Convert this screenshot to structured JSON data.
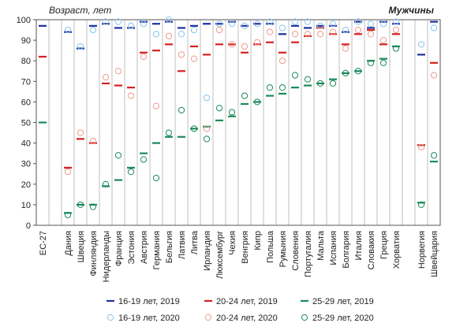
{
  "chart_data": {
    "type": "scatter",
    "title": "Мужчины",
    "ylabel": "Возраст, лет",
    "ylim": [
      0,
      100
    ],
    "yticks": [
      0,
      10,
      20,
      30,
      40,
      50,
      60,
      70,
      80,
      90,
      100
    ],
    "categories": [
      "ЕС-27",
      "Дания",
      "Швеция",
      "Финляндия",
      "Нидерланды",
      "Франция",
      "Эстония",
      "Австрия",
      "Германия",
      "Бельгия",
      "Латвия",
      "Литва",
      "Ирландия",
      "Люксембург",
      "Чехия",
      "Венгрия",
      "Кипр",
      "Польша",
      "Румыния",
      "Словения",
      "Португалия",
      "Мальта",
      "Испания",
      "Болгария",
      "Италия",
      "Словакия",
      "Греция",
      "Хорватия",
      "Норвегия",
      "Швейцария"
    ],
    "category_groups": [
      [
        0
      ],
      [
        1,
        2,
        3,
        4,
        5,
        6,
        7,
        8,
        9,
        10,
        11,
        12,
        13,
        14,
        15,
        16,
        17,
        18,
        19,
        20,
        21,
        22,
        23,
        24,
        25,
        26,
        27
      ],
      [
        28,
        29
      ]
    ],
    "series": [
      {
        "name": "16-19 лет, 2019",
        "marker": "dash",
        "color": "#1f2fa0",
        "values": [
          97,
          94,
          86,
          97,
          98,
          96,
          96,
          99,
          98,
          99,
          96,
          97,
          98,
          98,
          99,
          97,
          98,
          98,
          93,
          97,
          96,
          97,
          97,
          94,
          99,
          96,
          99,
          98,
          83,
          99
        ]
      },
      {
        "name": "20-24 лет, 2019",
        "marker": "dash",
        "color": "#d42020",
        "values": [
          82,
          28,
          42,
          40,
          69,
          68,
          67,
          84,
          85,
          88,
          75,
          87,
          83,
          88,
          88,
          84,
          88,
          89,
          84,
          89,
          92,
          96,
          93,
          88,
          93,
          95,
          88,
          93,
          39,
          79
        ]
      },
      {
        "name": "25-29 лет, 2019",
        "marker": "dash",
        "color": "#1a8a5a",
        "values": [
          50,
          6,
          10,
          10,
          19,
          22,
          28,
          35,
          40,
          43,
          43,
          47,
          48,
          51,
          53,
          59,
          60,
          63,
          64,
          67,
          68,
          69,
          71,
          74,
          75,
          80,
          81,
          87,
          11,
          31
        ]
      },
      {
        "name": "16-19 лет, 2020",
        "marker": "circle",
        "color": "#88c6ee",
        "values": [
          null,
          95,
          87,
          95,
          99,
          99,
          97,
          98,
          93,
          100,
          93,
          95,
          62,
          98,
          98,
          97,
          98,
          99,
          96,
          99,
          99,
          97,
          98,
          95,
          99,
          98,
          98,
          99,
          88,
          96
        ]
      },
      {
        "name": "20-24 лет, 2020",
        "marker": "circle",
        "color": "#ee9a8a",
        "values": [
          null,
          26,
          45,
          41,
          72,
          75,
          63,
          82,
          58,
          92,
          83,
          81,
          47,
          95,
          88,
          87,
          89,
          94,
          80,
          93,
          93,
          93,
          94,
          86,
          95,
          93,
          90,
          95,
          38,
          73
        ]
      },
      {
        "name": "25-29 лет, 2020",
        "marker": "circle",
        "color": "#1a8a5a",
        "values": [
          null,
          5,
          10,
          9,
          20,
          34,
          26,
          32,
          23,
          45,
          56,
          47,
          42,
          57,
          55,
          63,
          60,
          67,
          67,
          73,
          71,
          69,
          69,
          74,
          75,
          79,
          79,
          86,
          10,
          34
        ]
      }
    ],
    "legend_position": "bottom",
    "grid": "vertical"
  }
}
